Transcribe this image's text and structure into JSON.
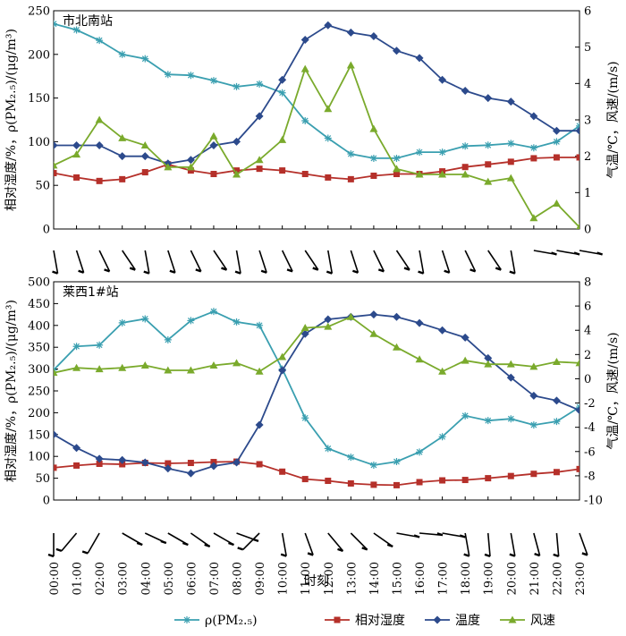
{
  "legend": [
    {
      "label": "ρ(PM₂.₅)",
      "color": "#3a9fb0",
      "marker": "star"
    },
    {
      "label": "相对湿度",
      "color": "#b5302a",
      "marker": "square"
    },
    {
      "label": "温度",
      "color": "#2c4a8c",
      "marker": "diamond"
    },
    {
      "label": "风速",
      "color": "#7aaa2c",
      "marker": "triangle"
    }
  ],
  "xlabel": "时刻",
  "chart_data": [
    {
      "type": "line",
      "title": "市北南站",
      "categories": [
        "00:00",
        "01:00",
        "02:00",
        "03:00",
        "04:00",
        "05:00",
        "06:00",
        "07:00",
        "08:00",
        "09:00",
        "10:00",
        "11:00",
        "12:00",
        "13:00",
        "14:00",
        "15:00",
        "16:00",
        "17:00",
        "18:00",
        "19:00",
        "20:00",
        "21:00",
        "22:00",
        "23:00"
      ],
      "ylabel_left": "相对湿度/%，ρ(PM₂.₅)/(μg/m³)",
      "ylabel_right": "气温/℃，风速/(m/s)",
      "ylim_left": [
        0,
        250
      ],
      "ylim_right": [
        0,
        6
      ],
      "yticks_left": [
        0,
        50,
        100,
        150,
        200,
        250
      ],
      "yticks_right": [
        0,
        1,
        2,
        3,
        4,
        5,
        6
      ],
      "series": [
        {
          "name": "ρ(PM₂.₅)",
          "axis": "left",
          "values": [
            235,
            228,
            216,
            200,
            195,
            177,
            176,
            170,
            163,
            166,
            156,
            124,
            104,
            86,
            81,
            81,
            88,
            88,
            95,
            96,
            98,
            93,
            100,
            118
          ]
        },
        {
          "name": "相对湿度",
          "axis": "left",
          "values": [
            64,
            59,
            55,
            57,
            65,
            74,
            67,
            63,
            67,
            69,
            67,
            63,
            59,
            57,
            61,
            63,
            63,
            66,
            71,
            74,
            77,
            81,
            82,
            82
          ]
        },
        {
          "name": "温度",
          "axis": "right",
          "values": [
            2.3,
            2.3,
            2.3,
            2.0,
            2.0,
            1.8,
            1.9,
            2.3,
            2.4,
            3.1,
            4.1,
            5.2,
            5.6,
            5.4,
            5.3,
            4.9,
            4.7,
            4.1,
            3.8,
            3.6,
            3.5,
            3.1,
            2.7,
            2.7
          ]
        },
        {
          "name": "风速",
          "axis": "right",
          "values": [
            1.75,
            2.05,
            3.0,
            2.5,
            2.3,
            1.7,
            1.7,
            2.55,
            1.5,
            1.9,
            2.45,
            4.4,
            3.3,
            4.5,
            2.75,
            1.65,
            1.5,
            1.5,
            1.5,
            1.3,
            1.4,
            0.3,
            0.7,
            0.05
          ]
        }
      ]
    },
    {
      "type": "line",
      "title": "莱西1#站",
      "categories": [
        "00:00",
        "01:00",
        "02:00",
        "03:00",
        "04:00",
        "05:00",
        "06:00",
        "07:00",
        "08:00",
        "09:00",
        "10:00",
        "11:00",
        "12:00",
        "13:00",
        "14:00",
        "15:00",
        "16:00",
        "17:00",
        "18:00",
        "19:00",
        "20:00",
        "21:00",
        "22:00",
        "23:00"
      ],
      "ylabel_left": "相对湿度/%，ρ(PM₂.₅)/(μg/m³)",
      "ylabel_right": "气温/℃，风速/(m/s)",
      "ylim_left": [
        0,
        500
      ],
      "ylim_right": [
        -10,
        8
      ],
      "yticks_left": [
        0,
        50,
        100,
        150,
        200,
        250,
        300,
        350,
        400,
        450,
        500
      ],
      "yticks_right": [
        -10,
        -8,
        -6,
        -4,
        -2,
        0,
        2,
        4,
        6,
        8
      ],
      "series": [
        {
          "name": "ρ(PM₂.₅)",
          "axis": "left",
          "values": [
            298,
            352,
            355,
            406,
            415,
            367,
            411,
            432,
            408,
            400,
            300,
            188,
            118,
            98,
            80,
            88,
            110,
            145,
            193,
            182,
            186,
            172,
            180,
            213
          ]
        },
        {
          "name": "相对湿度",
          "axis": "left",
          "values": [
            74,
            79,
            83,
            82,
            85,
            84,
            85,
            87,
            88,
            82,
            65,
            48,
            44,
            38,
            35,
            34,
            41,
            45,
            46,
            50,
            55,
            60,
            64,
            71
          ]
        },
        {
          "name": "温度",
          "axis": "right",
          "values": [
            -4.6,
            -5.7,
            -6.6,
            -6.7,
            -6.9,
            -7.4,
            -7.8,
            -7.2,
            -6.9,
            -3.8,
            0.7,
            3.7,
            4.9,
            5.1,
            5.3,
            5.1,
            4.6,
            4.0,
            3.4,
            1.7,
            0.1,
            -1.4,
            -1.8,
            -2.6
          ]
        },
        {
          "name": "风速",
          "axis": "right",
          "values": [
            0.5,
            0.9,
            0.8,
            0.9,
            1.1,
            0.7,
            0.7,
            1.1,
            1.3,
            0.6,
            1.8,
            4.2,
            4.3,
            5.1,
            3.7,
            2.6,
            1.6,
            0.6,
            1.5,
            1.2,
            1.2,
            1.0,
            1.4,
            1.3
          ]
        }
      ]
    }
  ]
}
